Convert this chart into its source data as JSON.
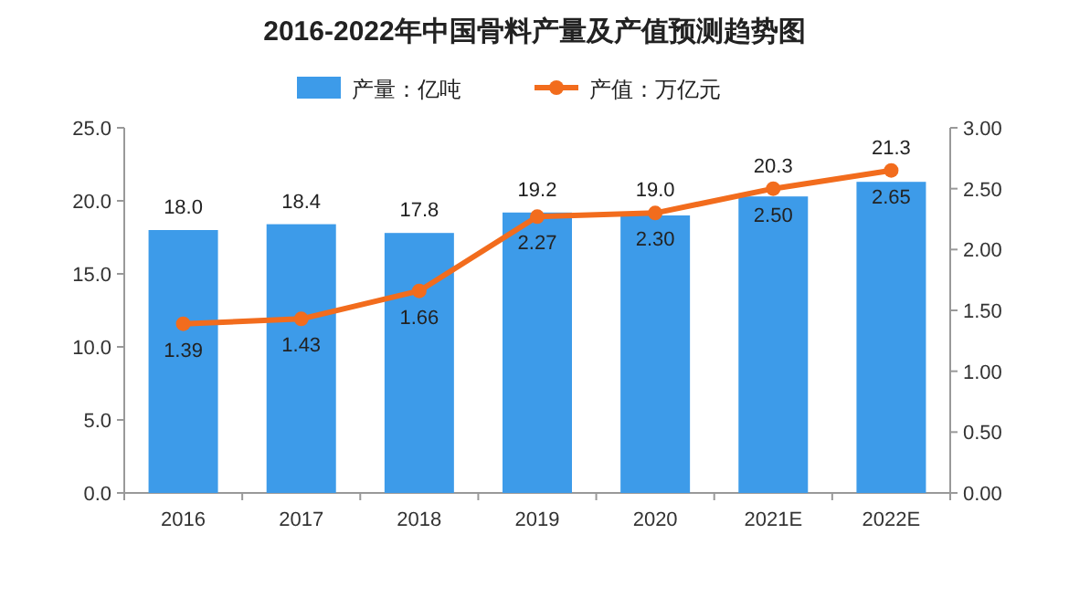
{
  "chart_data": {
    "type": "bar",
    "title": "2016-2022年中国骨料产量及产值预测趋势图",
    "categories": [
      "2016",
      "2017",
      "2018",
      "2019",
      "2020",
      "2021E",
      "2022E"
    ],
    "series": [
      {
        "name": "产量：亿吨",
        "color": "#3d9be9",
        "values": [
          18.0,
          18.4,
          17.8,
          19.2,
          19.0,
          20.3,
          21.3
        ],
        "value_labels": [
          "18.0",
          "18.4",
          "17.8",
          "19.2",
          "19.0",
          "20.3",
          "21.3"
        ]
      },
      {
        "name": "产值：万亿元",
        "type": "line",
        "axis": "y2",
        "color": "#f26c1d",
        "marker": "circle",
        "values": [
          1.39,
          1.43,
          1.66,
          2.27,
          2.3,
          2.5,
          2.65
        ],
        "value_labels": [
          "1.39",
          "1.43",
          "1.66",
          "2.27",
          "2.30",
          "2.50",
          "2.65"
        ]
      }
    ],
    "ylim": [
      0,
      25
    ],
    "yticks": [
      {
        "value": 0,
        "label": "0.0"
      },
      {
        "value": 5,
        "label": "5.0"
      },
      {
        "value": 10,
        "label": "10.0"
      },
      {
        "value": 15,
        "label": "15.0"
      },
      {
        "value": 20,
        "label": "20.0"
      },
      {
        "value": 25,
        "label": "25.0"
      }
    ],
    "y2lim": [
      0,
      3
    ],
    "y2ticks": [
      {
        "value": 0,
        "label": "0.00"
      },
      {
        "value": 0.5,
        "label": "0.50"
      },
      {
        "value": 1,
        "label": "1.00"
      },
      {
        "value": 1.5,
        "label": "1.50"
      },
      {
        "value": 2,
        "label": "2.00"
      },
      {
        "value": 2.5,
        "label": "2.50"
      },
      {
        "value": 3,
        "label": "3.00"
      }
    ],
    "grid": false,
    "legend": "top"
  }
}
